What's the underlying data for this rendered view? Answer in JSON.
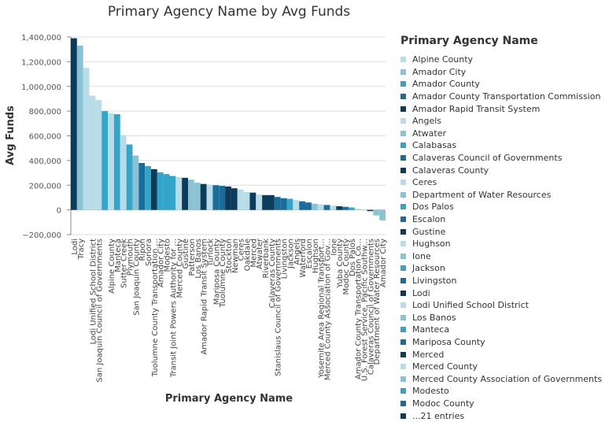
{
  "chart_data": {
    "type": "bar",
    "title": "Primary Agency Name by Avg Funds",
    "xlabel": "Primary Agency Name",
    "ylabel": "Avg Funds",
    "ylim": [
      -200000,
      1400000
    ],
    "yticks": [
      -200000,
      0,
      200000,
      400000,
      600000,
      800000,
      1000000,
      1200000,
      1400000
    ],
    "ytick_labels": [
      "−200,000",
      "0",
      "200,000",
      "400,000",
      "600,000",
      "800,000",
      "1,000,000",
      "1,200,000",
      "1,400,000"
    ],
    "grid": true,
    "palette": [
      "#b9dde8",
      "#8cc3d4",
      "#34a4c9",
      "#1a6d9a",
      "#0d3b5a"
    ],
    "categories": [
      "Lodi",
      "Tracy",
      "",
      "Lodi Unified School District",
      "San Joaquin Council of Governments",
      "",
      "Alpine County",
      "Manteca",
      "Sutter Creek",
      "Plymouth",
      "San Joaquin County",
      "Ripon",
      "Sonora",
      "Tuolumne County Transportation ...",
      "Amador City",
      "Modesto",
      "Transit Joint Powers Authority for ...",
      "Merced County",
      "Gustine",
      "Patterson",
      "Los Banos",
      "Amador Rapid Transit System",
      "Turlock",
      "Mariposa County",
      "Tuolumne County",
      "Stockton",
      "Newman",
      "Ceres",
      "Oakdale",
      "Merced",
      "Atwater",
      "Riverbank",
      "Calaveras County",
      "Stanislaus Council of Governments",
      "Livingston",
      "Jackson",
      "Angels",
      "Waterford",
      "Escalon",
      "Hughson",
      "Yosemite Area Regional Transport...",
      "Merced County Association of Gov...",
      "Ione",
      "Yuba County",
      "Modoc County",
      "Dos Palos",
      "Amador County Transportation Co...",
      "U.S. Forest Service, Pacific Southw...",
      "Calaveras Council of Governments",
      "Department of Water Resources",
      "Amador City"
    ],
    "values": [
      1390000,
      1330000,
      1150000,
      925000,
      890000,
      800000,
      785000,
      775000,
      605000,
      530000,
      440000,
      380000,
      355000,
      330000,
      305000,
      290000,
      275000,
      265000,
      260000,
      245000,
      220000,
      210000,
      205000,
      200000,
      195000,
      190000,
      175000,
      165000,
      145000,
      140000,
      125000,
      120000,
      120000,
      105000,
      95000,
      90000,
      80000,
      70000,
      60000,
      50000,
      45000,
      40000,
      35000,
      30000,
      25000,
      20000,
      10000,
      5000,
      -10000,
      -45000,
      -85000
    ],
    "color_index": [
      4,
      1,
      0,
      0,
      0,
      2,
      0,
      2,
      0,
      2,
      1,
      3,
      2,
      4,
      2,
      2,
      2,
      0,
      4,
      1,
      1,
      4,
      0,
      3,
      3,
      4,
      4,
      0,
      0,
      4,
      0,
      4,
      4,
      3,
      3,
      2,
      0,
      3,
      3,
      1,
      0,
      3,
      0,
      4,
      3,
      2,
      0,
      0,
      4,
      1,
      1
    ],
    "legend": {
      "title": "Primary Agency Name",
      "position": "right",
      "entries": [
        "Alpine County",
        "Amador City",
        "Amador County",
        "Amador County Transportation Commission",
        "Amador Rapid Transit System",
        "Angels",
        "Atwater",
        "Calabasas",
        "Calaveras Council of Governments",
        "Calaveras County",
        "Ceres",
        "Department of Water Resources",
        "Dos Palos",
        "Escalon",
        "Gustine",
        "Hughson",
        "Ione",
        "Jackson",
        "Livingston",
        "Lodi",
        "Lodi Unified School District",
        "Los Banos",
        "Manteca",
        "Mariposa County",
        "Merced",
        "Merced County",
        "Merced County Association of Governments",
        "Modesto",
        "Modoc County",
        "...21 entries"
      ]
    }
  }
}
